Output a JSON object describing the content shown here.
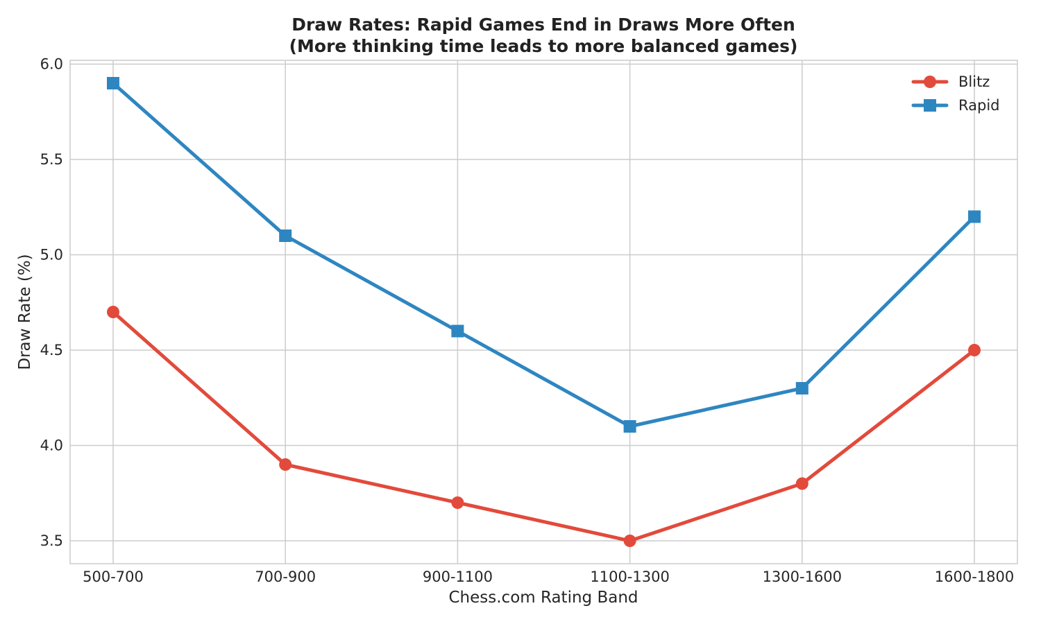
{
  "chart_data": {
    "type": "line",
    "title": "Draw Rates: Rapid Games End in Draws More Often",
    "subtitle": "(More thinking time leads to more balanced games)",
    "xlabel": "Chess.com Rating Band",
    "ylabel": "Draw Rate (%)",
    "categories": [
      "500-700",
      "700-900",
      "900-1100",
      "1100-1300",
      "1300-1600",
      "1600-1800"
    ],
    "ylim": [
      3.38,
      6.02
    ],
    "yticks": [
      "3.5",
      "4.0",
      "4.5",
      "5.0",
      "5.5",
      "6.0"
    ],
    "grid": true,
    "legend_position": "top-right",
    "series": [
      {
        "name": "Blitz",
        "values": [
          4.7,
          3.9,
          3.7,
          3.5,
          3.8,
          4.5
        ],
        "color": "#e24a3b",
        "marker": "circle"
      },
      {
        "name": "Rapid",
        "values": [
          5.9,
          5.1,
          4.6,
          4.1,
          4.3,
          5.2
        ],
        "color": "#2e86c1",
        "marker": "square"
      }
    ]
  }
}
